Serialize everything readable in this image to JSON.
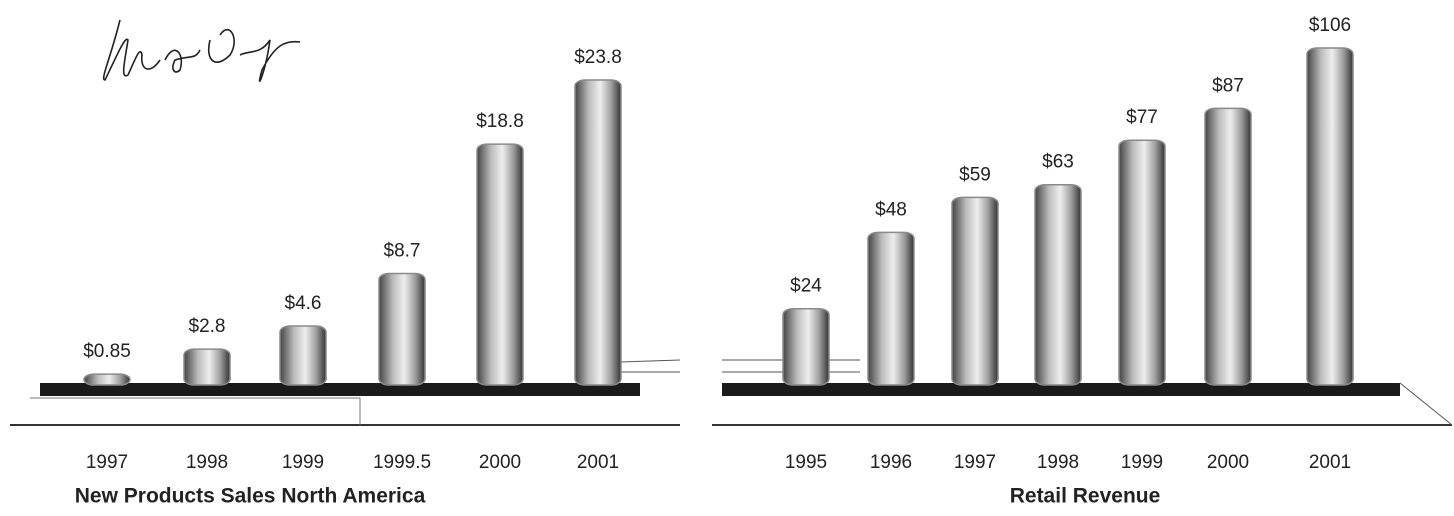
{
  "chart_data": [
    {
      "type": "bar",
      "title": "New Products Sales North America",
      "categories": [
        "1997",
        "1998",
        "1999",
        "1999.5",
        "2000",
        "2001"
      ],
      "values": [
        0.85,
        2.8,
        4.6,
        8.7,
        18.8,
        23.8
      ],
      "value_labels": [
        "$0.85",
        "$2.8",
        "$4.6",
        "$8.7",
        "$18.8",
        "$23.8"
      ],
      "color": "#8a8a8a"
    },
    {
      "type": "bar",
      "title": "Retail Revenue",
      "categories": [
        "1995",
        "1996",
        "1997",
        "1998",
        "1999",
        "2000",
        "2001"
      ],
      "values": [
        24,
        48,
        59,
        63,
        77,
        87,
        106
      ],
      "value_labels": [
        "$24",
        "$48",
        "$59",
        "$63",
        "$77",
        "$87",
        "$106"
      ],
      "color": "#8a8a8a"
    }
  ]
}
